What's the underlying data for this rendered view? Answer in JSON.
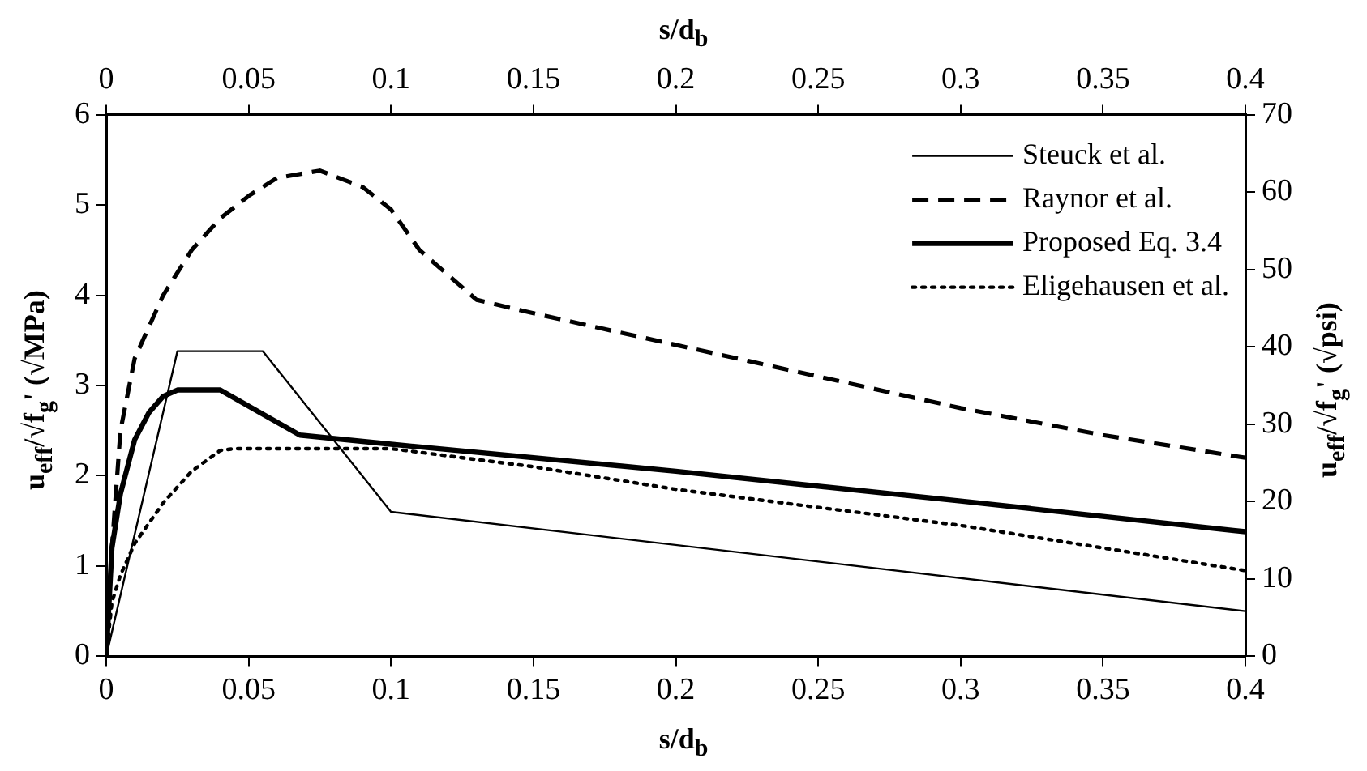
{
  "chart_data": {
    "type": "line",
    "xlabel": "s/d$_{b}$",
    "x2label": "s/d$_{b}$",
    "ylabel": "u$_{eff}$/√f$_{g}$' (√MPa)",
    "y2label": "u$_{eff}$/√f$_{g}$' (√psi)",
    "xlim": [
      0,
      0.4
    ],
    "xticks": [
      0,
      0.05,
      0.1,
      0.15,
      0.2,
      0.25,
      0.3,
      0.35,
      0.4
    ],
    "x2lim": [
      0,
      0.4
    ],
    "x2ticks": [
      0,
      0.05,
      0.1,
      0.15,
      0.2,
      0.25,
      0.3,
      0.35,
      0.4
    ],
    "ylim": [
      0,
      6
    ],
    "yticks": [
      0,
      1,
      2,
      3,
      4,
      5,
      6
    ],
    "y2lim": [
      0,
      70
    ],
    "y2ticks": [
      0,
      10,
      20,
      30,
      40,
      50,
      60,
      70
    ],
    "grid": false,
    "legend": "top right",
    "marker": "none",
    "series": [
      {
        "name": "Steuck et al.",
        "color": "#000000",
        "line_style": "solid",
        "x": [
          0,
          0.025,
          0.055,
          0.1,
          0.4
        ],
        "values": [
          0,
          3.38,
          3.38,
          1.6,
          0.5
        ]
      },
      {
        "name": "Raynor et al.",
        "color": "#000000",
        "line_style": "dashed",
        "x": [
          0,
          0.002,
          0.005,
          0.01,
          0.02,
          0.03,
          0.04,
          0.05,
          0.06,
          0.075,
          0.09,
          0.1,
          0.11,
          0.13,
          0.15,
          0.2,
          0.25,
          0.3,
          0.35,
          0.4
        ],
        "values": [
          0,
          1.2,
          2.5,
          3.3,
          4.0,
          4.5,
          4.85,
          5.1,
          5.3,
          5.38,
          5.2,
          4.95,
          4.5,
          3.95,
          3.8,
          3.45,
          3.1,
          2.75,
          2.45,
          2.2
        ]
      },
      {
        "name": "Proposed Eq. 3.4",
        "color": "#000000",
        "line_style": "solid",
        "x": [
          0,
          0.002,
          0.005,
          0.01,
          0.015,
          0.02,
          0.025,
          0.04,
          0.068,
          0.1,
          0.2,
          0.3,
          0.4
        ],
        "values": [
          0,
          1.2,
          1.8,
          2.4,
          2.7,
          2.88,
          2.95,
          2.95,
          2.45,
          2.35,
          2.05,
          1.72,
          1.38
        ]
      },
      {
        "name": "Eligehausen et al.",
        "color": "#000000",
        "line_style": "dotted",
        "x": [
          0,
          0.002,
          0.005,
          0.01,
          0.02,
          0.03,
          0.04,
          0.045,
          0.1,
          0.15,
          0.2,
          0.3,
          0.4
        ],
        "values": [
          0,
          0.6,
          0.9,
          1.25,
          1.7,
          2.05,
          2.28,
          2.3,
          2.3,
          2.1,
          1.85,
          1.45,
          0.95
        ]
      }
    ]
  }
}
